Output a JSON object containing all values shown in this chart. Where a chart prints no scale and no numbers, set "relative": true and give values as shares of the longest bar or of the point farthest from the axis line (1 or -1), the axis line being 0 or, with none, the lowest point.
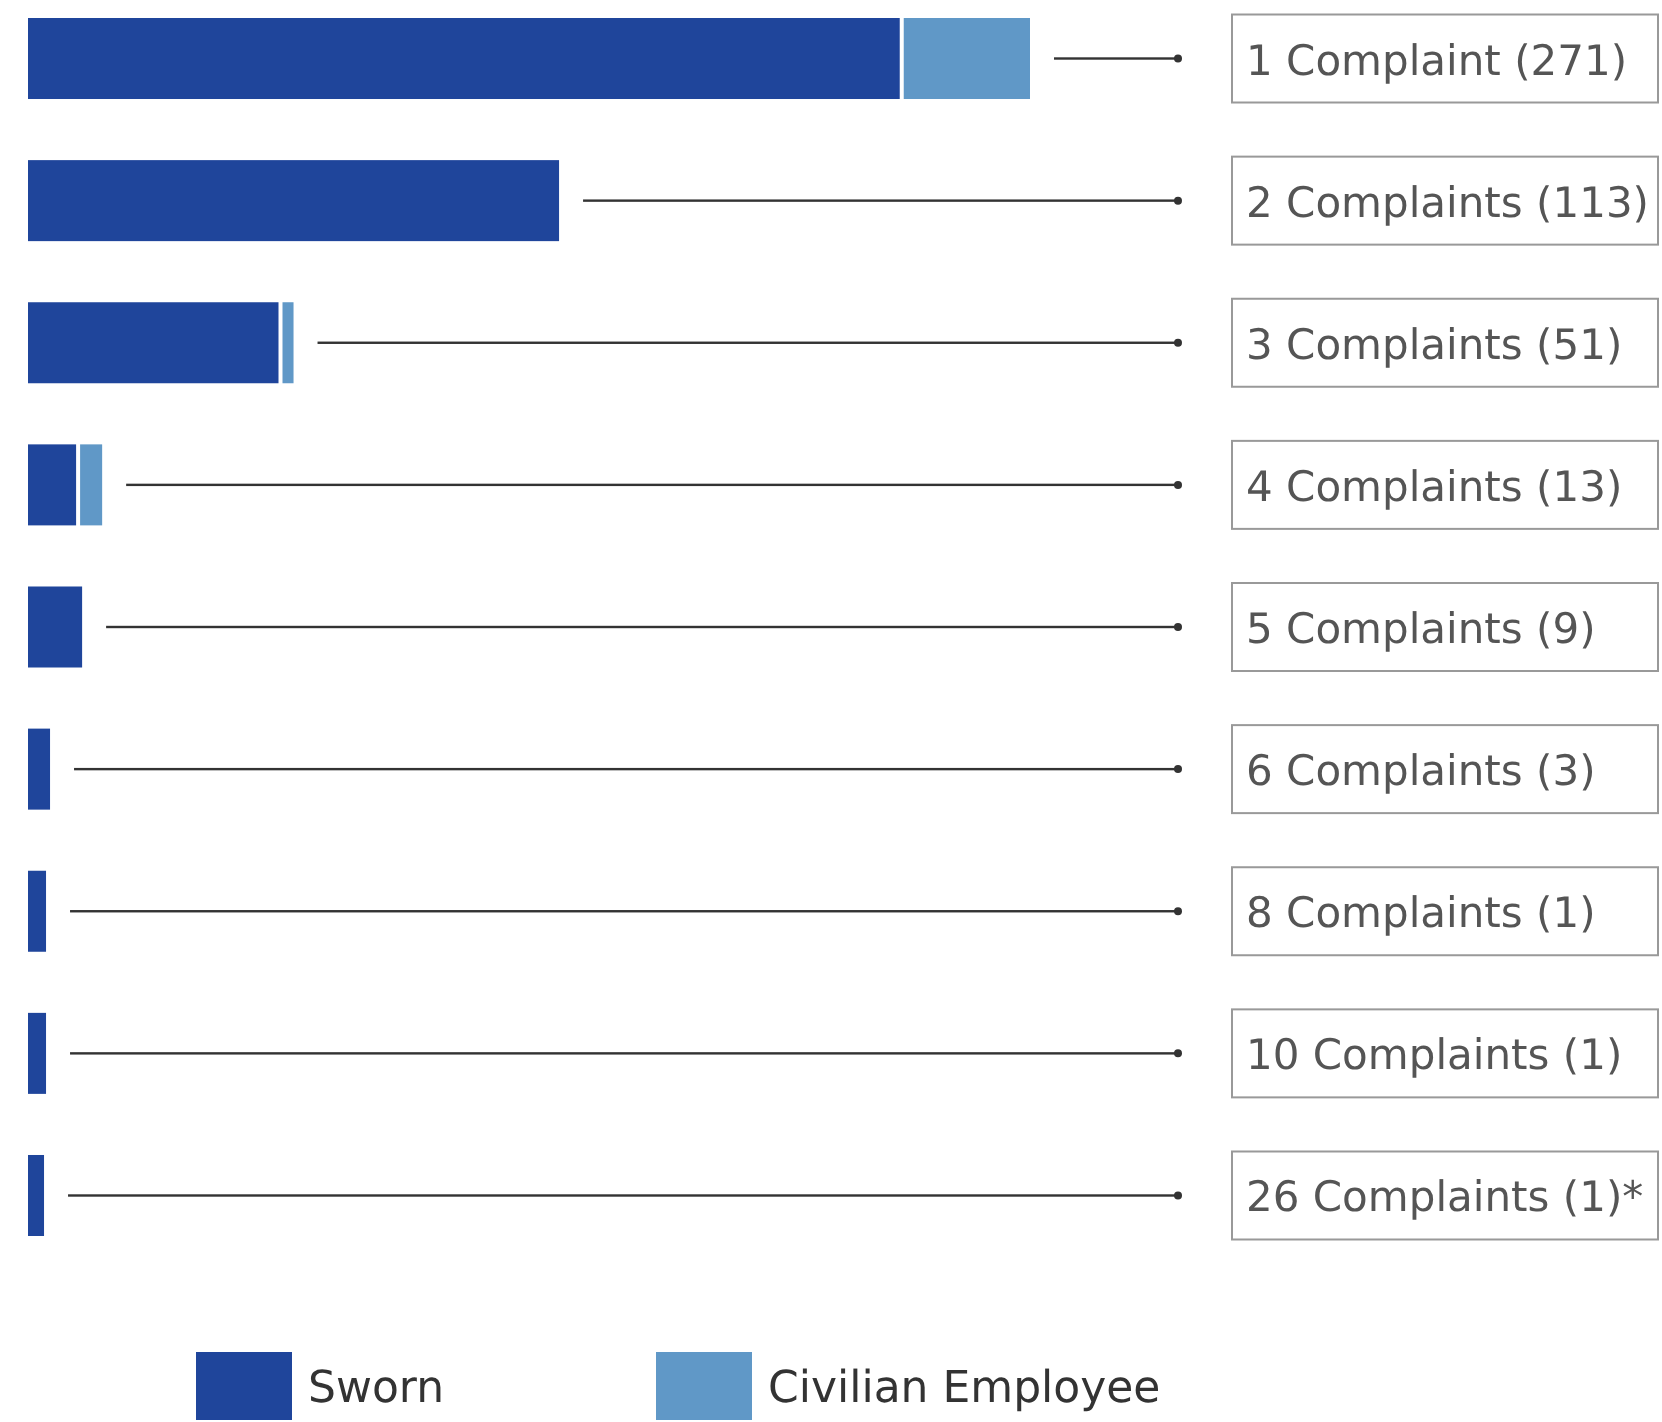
{
  "chart_data": {
    "type": "bar",
    "orientation": "horizontal",
    "stacked": true,
    "relative": true,
    "legend": "bottom",
    "categories": [
      "1 Complaint (271)",
      "2 Complaints (113)",
      "3 Complaints (51)",
      "4 Complaints (13)",
      "5 Complaints (9)",
      "6 Complaints (3)",
      "8 Complaints (1)",
      "10 Complaints (1)",
      "26 Complaints (1)*"
    ],
    "series": [
      {
        "name": "Sworn",
        "color": "#1f459b",
        "values": [
          0.87,
          0.53,
          0.25,
          0.048,
          0.054,
          0.022,
          0.018,
          0.018,
          0.016
        ]
      },
      {
        "name": "Civilian Employee",
        "color": "#6098c7",
        "values": [
          0.13,
          0,
          0.015,
          0.026,
          0,
          0,
          0,
          0,
          0
        ]
      }
    ]
  }
}
